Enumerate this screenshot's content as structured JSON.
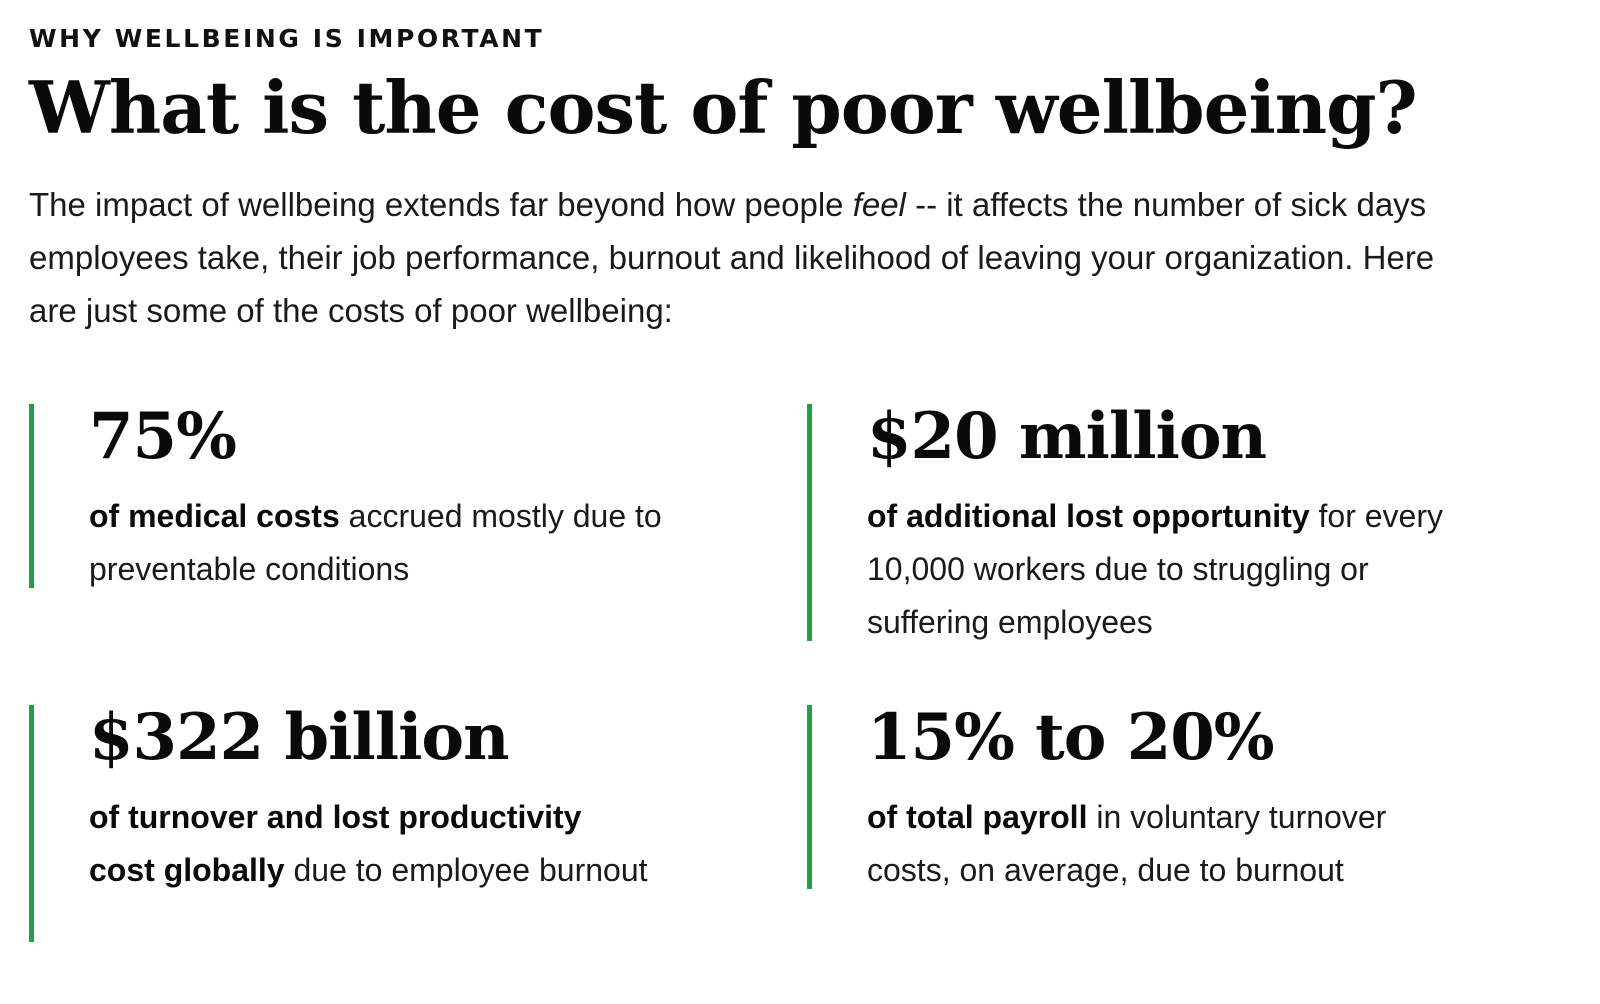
{
  "section": {
    "eyebrow": "WHY WELLBEING IS IMPORTANT",
    "title": "What is the cost of poor wellbeing?",
    "intro": {
      "before_em": "The impact of wellbeing extends far beyond how people ",
      "em": "feel",
      "after_em": " -- it affects the number of sick days employees take, their job performance, burnout and likelihood of leaving your organization. Here are just some of the costs of poor wellbeing:"
    }
  },
  "accent_color": "#1fa046",
  "stats": [
    {
      "value": "75%",
      "bold": "of medical costs",
      "rest": " accrued mostly due to preventable conditions"
    },
    {
      "value": "$20 million",
      "bold": "of additional lost opportunity",
      "rest": " for every 10,000 workers due to struggling or suffering employees"
    },
    {
      "value": "$322 billion",
      "bold": "of turnover and lost productivity cost globally",
      "rest": " due to employee burnout"
    },
    {
      "value": "15% to 20%",
      "bold": "of total payroll",
      "rest": " in voluntary turnover costs, on average, due to burnout"
    }
  ]
}
